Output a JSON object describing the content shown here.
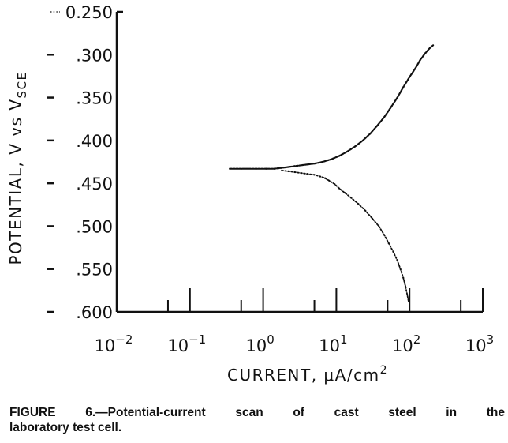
{
  "chart_data": {
    "type": "scatter",
    "title": "",
    "xlabel_text": "CURRENT, μA/cm",
    "xlabel_sup": "2",
    "ylabel_main": "POTENTIAL, V vs V",
    "ylabel_sub": "SCE",
    "xscale": "log",
    "xlim": [
      0.01,
      1000
    ],
    "ylim": [
      -0.6,
      -0.25
    ],
    "grid": false,
    "legend": "none",
    "x_ticks": [
      {
        "base": "10",
        "exp": "−2",
        "value": 0.01
      },
      {
        "base": "10",
        "exp": "−1",
        "value": 0.1
      },
      {
        "base": "10",
        "exp": "0",
        "value": 1
      },
      {
        "base": "10",
        "exp": "1",
        "value": 10
      },
      {
        "base": "10",
        "exp": "2",
        "value": 100
      },
      {
        "base": "10",
        "exp": "3",
        "value": 1000
      }
    ],
    "y_ticks": [
      {
        "label": "0.250",
        "value": -0.25
      },
      {
        "label": ".300",
        "value": -0.3
      },
      {
        "label": ".350",
        "value": -0.35
      },
      {
        "label": ".400",
        "value": -0.4
      },
      {
        "label": ".450",
        "value": -0.45
      },
      {
        "label": ".500",
        "value": -0.5
      },
      {
        "label": ".550",
        "value": -0.55
      },
      {
        "label": ".600",
        "value": -0.6
      }
    ],
    "series": [
      {
        "color": "#111111",
        "points": [
          [
            0.35,
            -0.433
          ],
          [
            0.5,
            -0.433
          ],
          [
            0.8,
            -0.433
          ],
          [
            1.1,
            -0.433
          ],
          [
            1.4,
            -0.433
          ],
          [
            1.8,
            -0.432
          ],
          [
            2.2,
            -0.431
          ],
          [
            2.7,
            -0.43
          ],
          [
            3.3,
            -0.429
          ],
          [
            4.0,
            -0.428
          ],
          [
            5.0,
            -0.427
          ],
          [
            6.5,
            -0.425
          ],
          [
            8.5,
            -0.422
          ],
          [
            11,
            -0.418
          ],
          [
            14,
            -0.413
          ],
          [
            18,
            -0.407
          ],
          [
            23,
            -0.4
          ],
          [
            29,
            -0.392
          ],
          [
            36,
            -0.383
          ],
          [
            45,
            -0.373
          ],
          [
            55,
            -0.362
          ],
          [
            68,
            -0.35
          ],
          [
            82,
            -0.338
          ],
          [
            100,
            -0.326
          ],
          [
            120,
            -0.316
          ],
          [
            140,
            -0.306
          ],
          [
            165,
            -0.298
          ],
          [
            190,
            -0.292
          ],
          [
            210,
            -0.289
          ]
        ]
      },
      {
        "color": "#111111",
        "points": [
          [
            1.8,
            -0.435
          ],
          [
            2.2,
            -0.436
          ],
          [
            2.7,
            -0.437
          ],
          [
            3.3,
            -0.438
          ],
          [
            4.0,
            -0.439
          ],
          [
            5.0,
            -0.44
          ],
          [
            6.0,
            -0.442
          ],
          [
            7.0,
            -0.444
          ],
          [
            8.0,
            -0.447
          ],
          [
            9.5,
            -0.451
          ],
          [
            11,
            -0.456
          ],
          [
            13,
            -0.461
          ],
          [
            16,
            -0.467
          ],
          [
            20,
            -0.474
          ],
          [
            25,
            -0.482
          ],
          [
            31,
            -0.491
          ],
          [
            38,
            -0.5
          ],
          [
            45,
            -0.51
          ],
          [
            52,
            -0.52
          ],
          [
            60,
            -0.53
          ],
          [
            68,
            -0.54
          ],
          [
            75,
            -0.55
          ],
          [
            82,
            -0.56
          ],
          [
            88,
            -0.57
          ],
          [
            93,
            -0.58
          ],
          [
            97,
            -0.588
          ]
        ]
      }
    ]
  },
  "caption": {
    "line1": "FIGURE 6.—Potential-current scan of cast steel in the",
    "line2": "laboratory test cell."
  }
}
